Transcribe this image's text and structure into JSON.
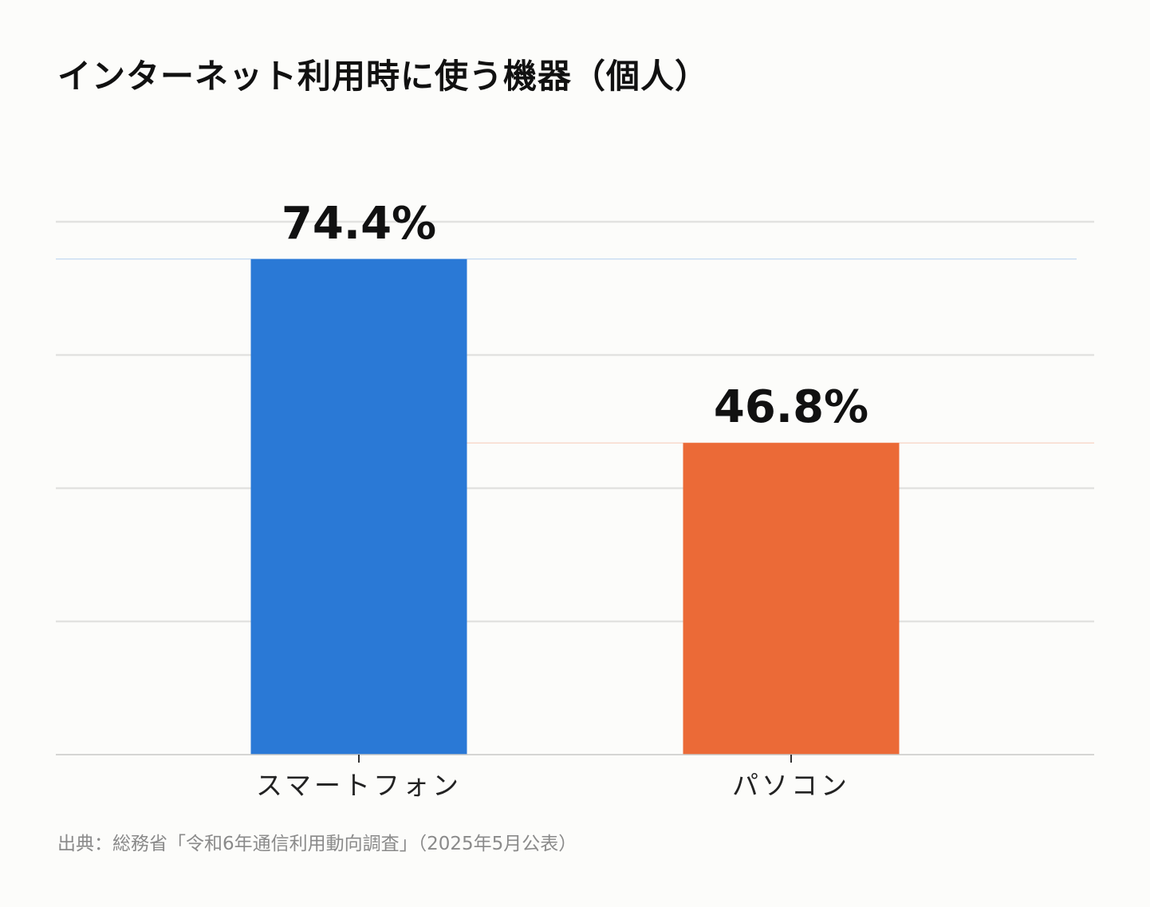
{
  "title": "インターネット利用時に使う機器（個人）",
  "source": "出典：総務省「令和6年通信利用動向調査」（2025年5月公表）",
  "colors": {
    "background": "#fcfcfa",
    "grid": "#e2e2e0",
    "smartphone": "#2a79d6",
    "pc": "#eb6a37",
    "text": "#111111",
    "source_text": "#8a8a8a"
  },
  "chart_data": {
    "type": "bar",
    "categories": [
      "スマートフォン",
      "パソコン"
    ],
    "values": [
      74.4,
      46.8
    ],
    "value_labels": [
      "74.4%",
      "46.8%"
    ],
    "unit": "%",
    "ylim": [
      0,
      80
    ],
    "grid": true,
    "legend": "none"
  }
}
